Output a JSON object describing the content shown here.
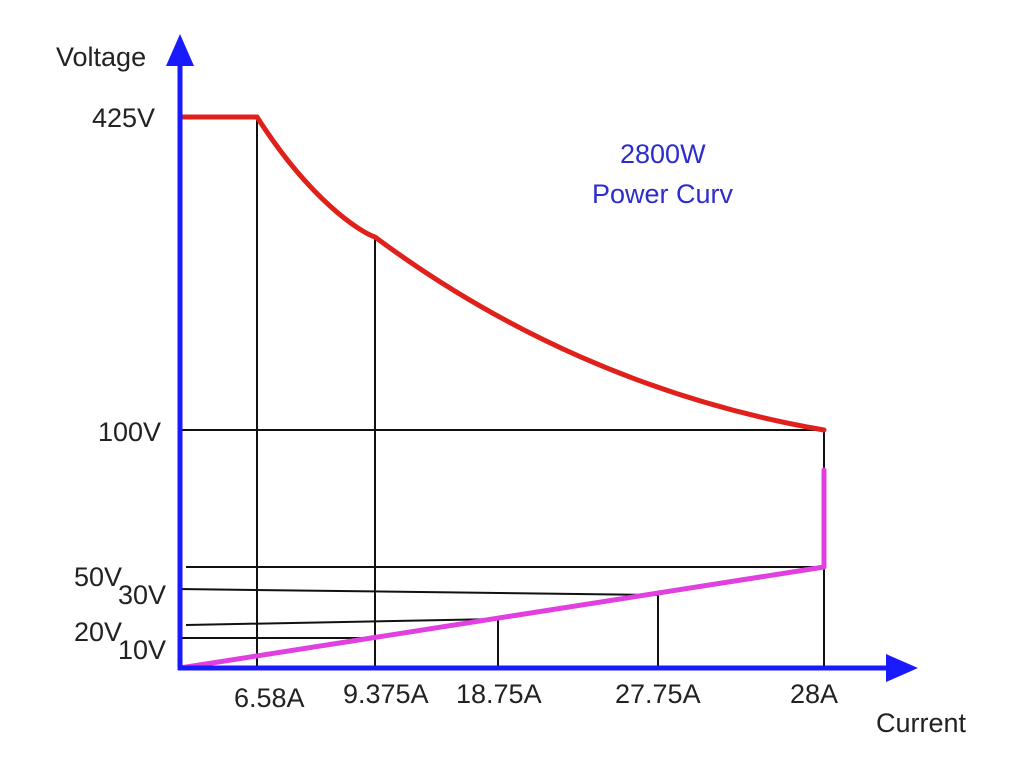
{
  "chart_data": {
    "type": "line",
    "ylabel": "Voltage",
    "xlabel": "Current",
    "annotation": [
      "2800W",
      "Power Curv"
    ],
    "y_tick_labels": [
      "425V",
      "100V",
      "50V",
      "30V",
      "20V",
      "10V"
    ],
    "x_tick_labels": [
      "6.58A",
      "9.375A",
      "18.75A",
      "27.75A",
      "28A"
    ],
    "series": [
      {
        "name": "",
        "color": "#e0201b",
        "points": [
          [
            0,
            425
          ],
          [
            6.58,
            425
          ],
          [
            9.375,
            298.7
          ],
          [
            28,
            100
          ]
        ],
        "note": "constant-voltage then constant-power hyperbola"
      },
      {
        "name": "",
        "color": "#e040e0",
        "points": [
          [
            0,
            0
          ],
          [
            28,
            50
          ],
          [
            28,
            100
          ]
        ]
      }
    ],
    "guides": [
      {
        "type": "v",
        "x_label": "6.58A"
      },
      {
        "type": "v",
        "x_label": "9.375A"
      },
      {
        "type": "v",
        "x_label": "18.75A"
      },
      {
        "type": "v",
        "x_label": "27.75A"
      },
      {
        "type": "v",
        "x_label": "28A"
      },
      {
        "type": "h",
        "y_label": "100V"
      },
      {
        "type": "h",
        "y_label": "50V"
      },
      {
        "type": "h",
        "y_label": "30V"
      },
      {
        "type": "h",
        "y_label": "20V"
      },
      {
        "type": "h",
        "y_label": "10V"
      }
    ],
    "colors": {
      "axis": "#1a1aff",
      "power_curve": "#e0201b",
      "linear_line": "#e040e0",
      "annotation": "#2d2dcc",
      "guide": "#111111"
    },
    "grid": false
  }
}
